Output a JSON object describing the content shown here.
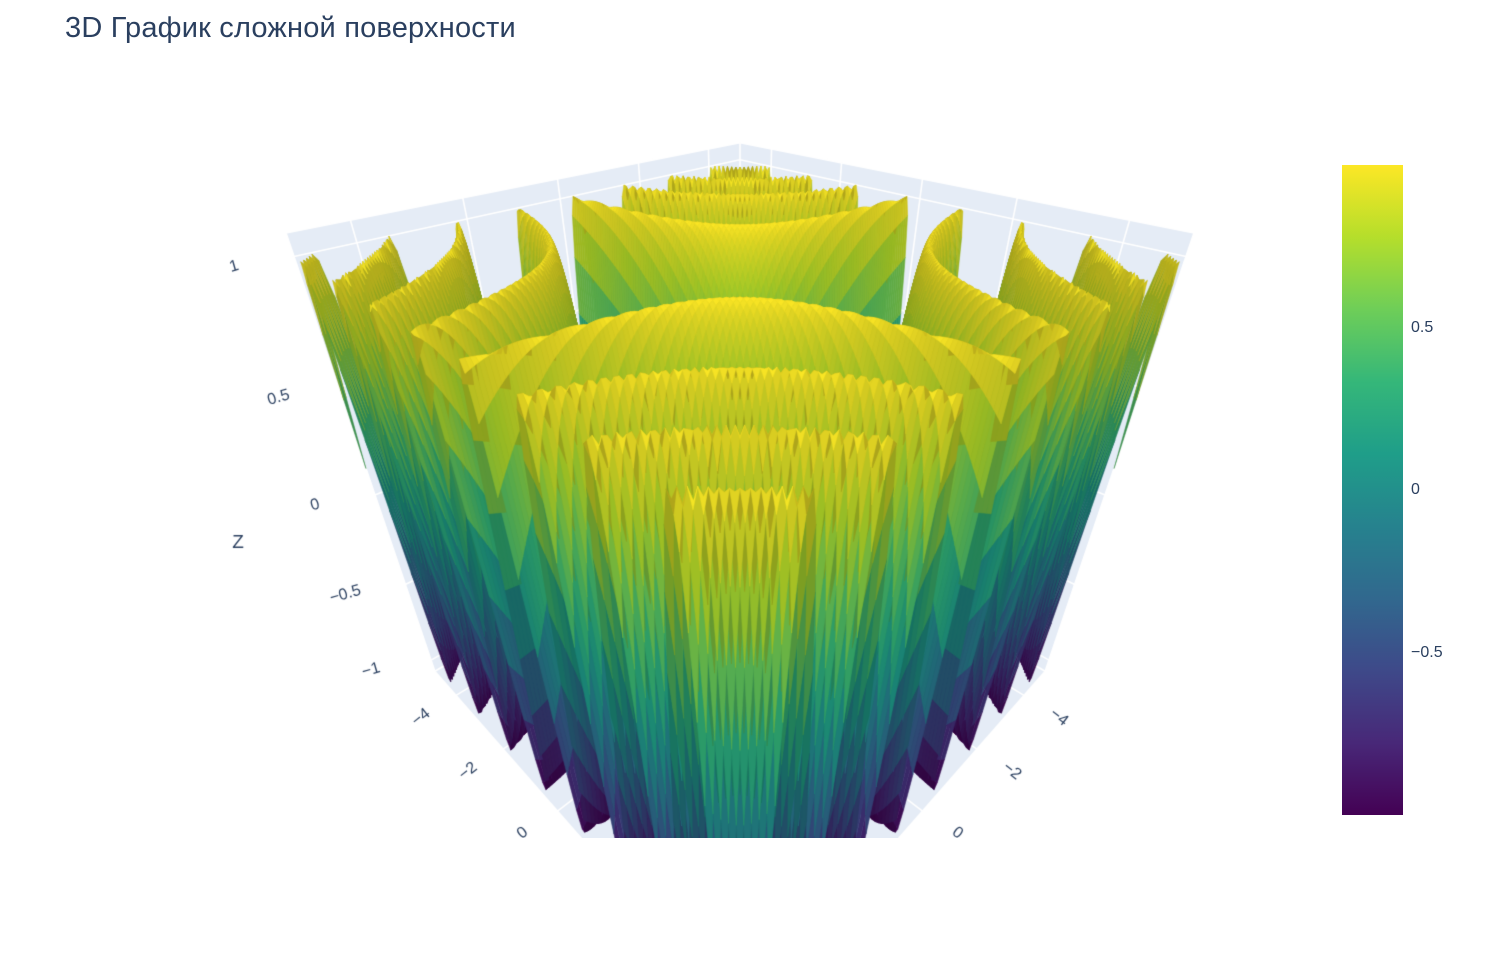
{
  "header": {
    "title": "3D График сложной поверхности",
    "title_color": "#2a3f5f"
  },
  "chart_data": {
    "type": "surface",
    "title": "3D График сложной поверхности",
    "z_formula": "sin(x*y)",
    "x": {
      "min": -5,
      "max": 5,
      "tick_step": 2,
      "visible_tick_labels": [
        "−4",
        "−2",
        "0"
      ]
    },
    "y": {
      "min": -5,
      "max": 5,
      "tick_step": 2,
      "visible_tick_labels": [
        "−4",
        "−2",
        "0"
      ]
    },
    "z": {
      "title": "Z",
      "min": -1.08,
      "max": 1.08,
      "ticks": [
        1,
        0.5,
        0,
        -0.5,
        -1
      ],
      "tick_labels": [
        "1",
        "0.5",
        "0",
        "−0.5",
        "−1"
      ]
    },
    "surface": {
      "colorscale_name": "Viridis",
      "cmin": -1,
      "cmax": 1,
      "grid_points": 150
    },
    "colorscale_stops": [
      [
        0.0,
        "#440154"
      ],
      [
        0.111111,
        "#482878"
      ],
      [
        0.222222,
        "#3e4989"
      ],
      [
        0.333333,
        "#31688e"
      ],
      [
        0.444444,
        "#26828e"
      ],
      [
        0.555556,
        "#1f9e89"
      ],
      [
        0.666667,
        "#35b779"
      ],
      [
        0.777778,
        "#6ece58"
      ],
      [
        0.888889,
        "#b5de2b"
      ],
      [
        1.0,
        "#fde725"
      ]
    ],
    "colorbar": {
      "tick_values": [
        0.5,
        0,
        -0.5
      ],
      "tick_labels": [
        "0.5",
        "0",
        "−0.5"
      ]
    },
    "scene_style": {
      "wall_color": "#e5ecf6",
      "grid_color": "#ffffff",
      "tick_color": "#2a3f5f"
    }
  }
}
